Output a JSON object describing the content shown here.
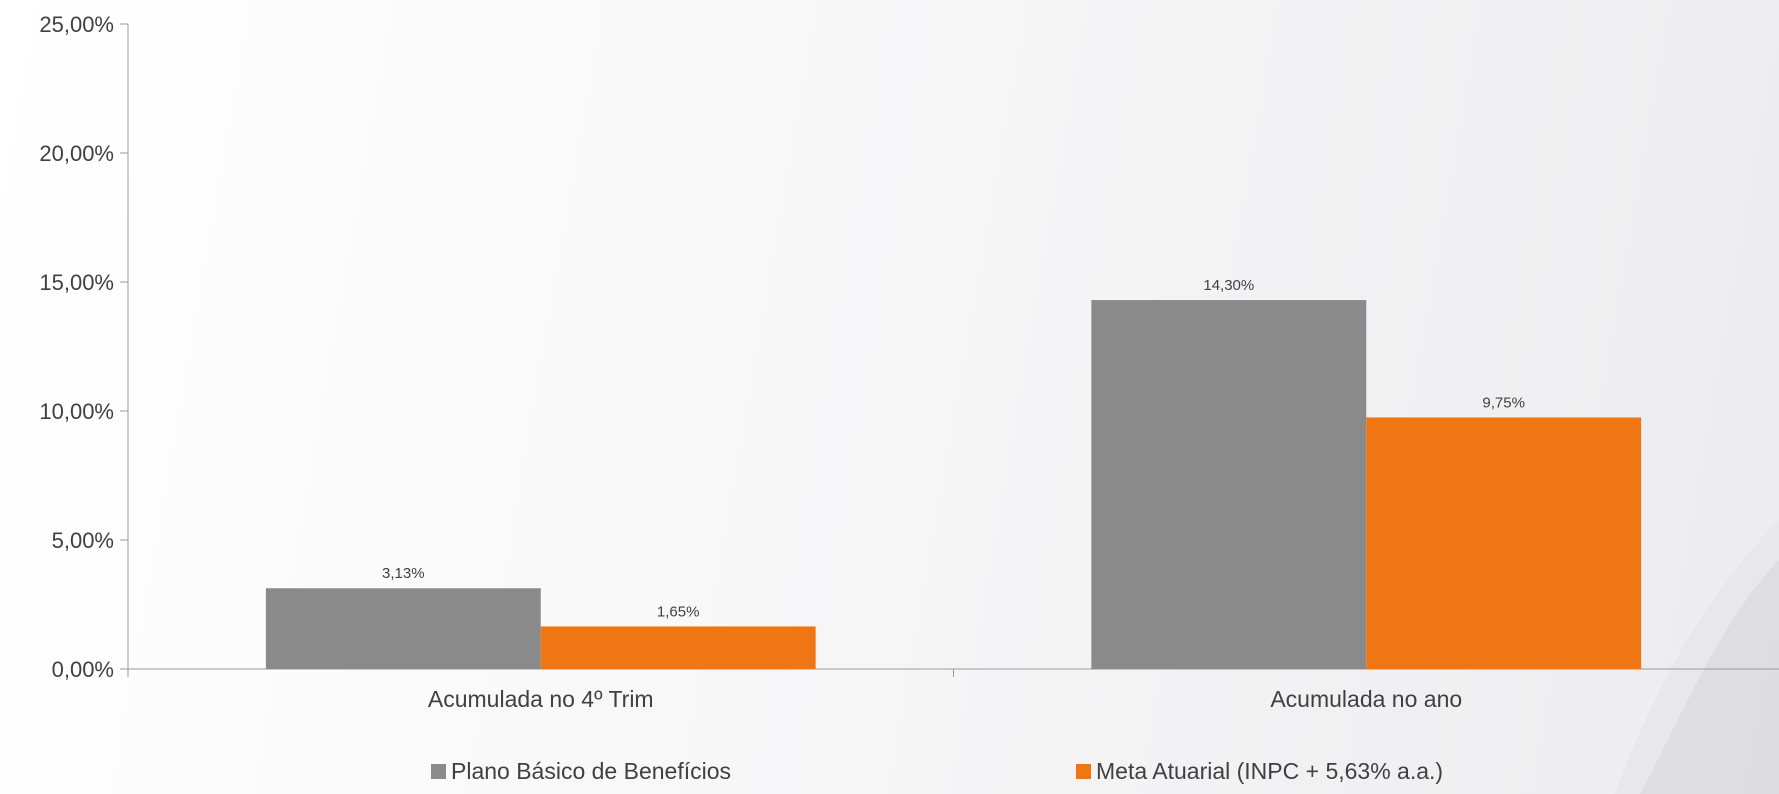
{
  "chart_data": {
    "type": "bar",
    "categories": [
      "Acumulada no 4º Trim",
      "Acumulada no ano"
    ],
    "series": [
      {
        "name": "Plano Básico de Benefícios",
        "values": [
          3.13,
          14.3
        ],
        "labels": [
          "3,13%",
          "14,30%"
        ],
        "color": "#8a8a8a"
      },
      {
        "name": "Meta Atuarial (INPC + 5,63% a.a.)",
        "values": [
          1.65,
          9.75
        ],
        "labels": [
          "1,65%",
          "9,75%"
        ],
        "color": "#f07614"
      }
    ],
    "ylim": [
      0,
      25
    ],
    "yticks": [
      0,
      5,
      10,
      15,
      20,
      25
    ],
    "ytick_labels": [
      "0,00%",
      "5,00%",
      "10,00%",
      "15,00%",
      "20,00%",
      "25,00%"
    ],
    "grid": false,
    "legend_position": "bottom",
    "title": "",
    "xlabel": "",
    "ylabel": ""
  }
}
